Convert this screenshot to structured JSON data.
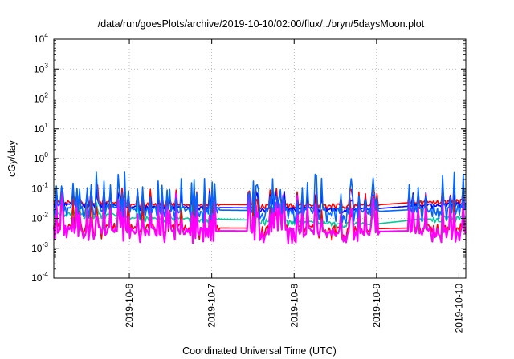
{
  "chart_data": {
    "type": "line",
    "title": "/data/run/goesPlots/archive/2019-10-10/02:00/flux/../bryn/5daysMoon.plot",
    "xlabel": "Coordinated Universal Time (UTC)",
    "ylabel": "cGy/day",
    "y_scale": "log",
    "ylim": [
      0.0001,
      10000
    ],
    "y_ticks": [
      {
        "base": "10",
        "exp": "-4"
      },
      {
        "base": "10",
        "exp": "-3"
      },
      {
        "base": "10",
        "exp": "-2"
      },
      {
        "base": "10",
        "exp": "-1"
      },
      {
        "base": "10",
        "exp": "0"
      },
      {
        "base": "10",
        "exp": "1"
      },
      {
        "base": "10",
        "exp": "2"
      },
      {
        "base": "10",
        "exp": "3"
      },
      {
        "base": "10",
        "exp": "4"
      }
    ],
    "xlim": [
      "2019-10-05 02:00",
      "2019-10-10 02:00"
    ],
    "x_ticks": [
      "2019-10-6",
      "2019-10-7",
      "2019-10-8",
      "2019-10-9",
      "2019-10-10"
    ],
    "grid": true,
    "legend": "none",
    "series": [
      {
        "color": "#ff0000",
        "base": [
          [
            0.0,
            0.036
          ],
          [
            0.7,
            0.036
          ],
          [
            0.8,
            0.031
          ],
          [
            2.0,
            0.029
          ],
          [
            3.9,
            0.028
          ],
          [
            4.7,
            0.04
          ],
          [
            5.0,
            0.041
          ]
        ]
      },
      {
        "color": "#0000ff",
        "base": [
          [
            0.0,
            0.032
          ],
          [
            0.7,
            0.03
          ],
          [
            0.8,
            0.025
          ],
          [
            2.0,
            0.023
          ],
          [
            3.9,
            0.021
          ],
          [
            4.7,
            0.031
          ],
          [
            5.0,
            0.032
          ]
        ]
      },
      {
        "color": "#00cc99",
        "base": [
          [
            0.0,
            0.014
          ],
          [
            0.7,
            0.014
          ],
          [
            0.8,
            0.011
          ],
          [
            2.0,
            0.0095
          ],
          [
            3.9,
            0.0065
          ],
          [
            4.7,
            0.011
          ],
          [
            5.0,
            0.011
          ]
        ]
      },
      {
        "color": "#ff0000",
        "base": [
          [
            0.0,
            0.0055
          ],
          [
            0.7,
            0.0055
          ],
          [
            0.8,
            0.005
          ],
          [
            2.0,
            0.0048
          ],
          [
            3.9,
            0.0045
          ],
          [
            4.7,
            0.005
          ],
          [
            5.0,
            0.005
          ]
        ]
      },
      {
        "color": "#ff00ff",
        "base": [
          [
            0.0,
            0.0042
          ],
          [
            0.7,
            0.0042
          ],
          [
            0.8,
            0.004
          ],
          [
            2.0,
            0.0038
          ],
          [
            3.9,
            0.0036
          ],
          [
            4.7,
            0.004
          ],
          [
            5.0,
            0.004
          ]
        ]
      },
      {
        "color": "#0066ff",
        "base": [
          [
            0.0,
            0.025
          ],
          [
            0.7,
            0.025
          ],
          [
            0.8,
            0.021
          ],
          [
            2.0,
            0.019
          ],
          [
            3.9,
            0.017
          ],
          [
            4.7,
            0.022
          ],
          [
            5.0,
            0.023
          ]
        ]
      }
    ]
  }
}
